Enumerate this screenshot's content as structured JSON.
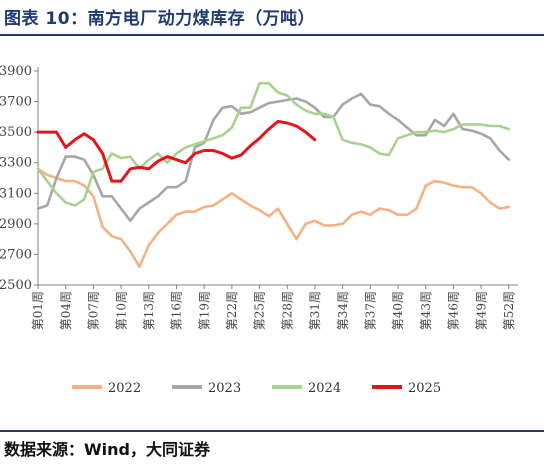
{
  "header": {
    "title": "图表 10：南方电厂动力煤库存（万吨）"
  },
  "footer": {
    "source": "数据来源：Wind，大同证券"
  },
  "chart_data": {
    "type": "line",
    "title": "南方电厂动力煤库存（万吨）",
    "ylim": [
      2500,
      3900
    ],
    "yticks": [
      2500,
      2700,
      2900,
      3100,
      3300,
      3500,
      3700,
      3900
    ],
    "ytick_labels": [
      "2500",
      "2700",
      "2900",
      "3100",
      "3300",
      "3500",
      "3700",
      "3900"
    ],
    "x_range": [
      1,
      53
    ],
    "xticks": [
      1,
      4,
      7,
      10,
      13,
      16,
      19,
      22,
      25,
      28,
      31,
      34,
      37,
      40,
      43,
      46,
      49,
      52
    ],
    "xtick_labels": [
      "第01周",
      "第04周",
      "第07周",
      "第10周",
      "第13周",
      "第16周",
      "第19周",
      "第22周",
      "第25周",
      "第28周",
      "第31周",
      "第34周",
      "第37周",
      "第40周",
      "第43周",
      "第46周",
      "第49周",
      "第52周"
    ],
    "legend": "bottom",
    "grid": false,
    "series": [
      {
        "name": "2022",
        "color": "#f4b183",
        "x": [
          1,
          2,
          3,
          4,
          5,
          6,
          7,
          8,
          9,
          10,
          11,
          12,
          13,
          14,
          15,
          16,
          17,
          18,
          19,
          20,
          21,
          22,
          23,
          24,
          25,
          26,
          27,
          28,
          29,
          30,
          31,
          32,
          33,
          34,
          35,
          36,
          37,
          38,
          39,
          40,
          41,
          42,
          43,
          44,
          45,
          46,
          47,
          48,
          49,
          50,
          51,
          52
        ],
        "values": [
          3260,
          3220,
          3200,
          3180,
          3180,
          3150,
          3080,
          2880,
          2820,
          2800,
          2720,
          2620,
          2760,
          2840,
          2900,
          2960,
          2980,
          2980,
          3010,
          3020,
          3060,
          3100,
          3060,
          3020,
          2990,
          2950,
          3000,
          2900,
          2800,
          2900,
          2920,
          2890,
          2890,
          2900,
          2960,
          2980,
          2960,
          3000,
          2990,
          2960,
          2960,
          3000,
          3150,
          3180,
          3170,
          3150,
          3140,
          3140,
          3100,
          3040,
          3000,
          3010
        ]
      },
      {
        "name": "2023",
        "color": "#a6a6a6",
        "x": [
          1,
          2,
          3,
          4,
          5,
          6,
          7,
          8,
          9,
          10,
          11,
          12,
          13,
          14,
          15,
          16,
          17,
          18,
          19,
          20,
          21,
          22,
          23,
          24,
          25,
          26,
          27,
          28,
          29,
          30,
          31,
          32,
          33,
          34,
          35,
          36,
          37,
          38,
          39,
          40,
          41,
          42,
          43,
          44,
          45,
          46,
          47,
          48,
          49,
          50,
          51,
          52
        ],
        "values": [
          3000,
          3020,
          3200,
          3340,
          3340,
          3320,
          3220,
          3080,
          3080,
          3000,
          2920,
          3000,
          3040,
          3080,
          3140,
          3140,
          3180,
          3400,
          3430,
          3580,
          3660,
          3670,
          3620,
          3630,
          3660,
          3690,
          3700,
          3710,
          3720,
          3700,
          3660,
          3600,
          3600,
          3680,
          3720,
          3750,
          3680,
          3670,
          3620,
          3580,
          3530,
          3480,
          3480,
          3580,
          3540,
          3620,
          3520,
          3510,
          3490,
          3460,
          3380,
          3320
        ]
      },
      {
        "name": "2024",
        "color": "#a9d18e",
        "x": [
          1,
          2,
          3,
          4,
          5,
          6,
          7,
          8,
          9,
          10,
          11,
          12,
          13,
          14,
          15,
          16,
          17,
          18,
          19,
          20,
          21,
          22,
          23,
          24,
          25,
          26,
          27,
          28,
          29,
          30,
          31,
          32,
          33,
          34,
          35,
          36,
          37,
          38,
          39,
          40,
          41,
          42,
          43,
          44,
          45,
          46,
          47,
          48,
          49,
          50,
          51,
          52
        ],
        "values": [
          3260,
          3180,
          3100,
          3040,
          3020,
          3060,
          3240,
          3260,
          3360,
          3330,
          3340,
          3260,
          3320,
          3360,
          3300,
          3360,
          3400,
          3420,
          3440,
          3460,
          3480,
          3530,
          3660,
          3660,
          3820,
          3820,
          3760,
          3740,
          3680,
          3640,
          3620,
          3620,
          3600,
          3450,
          3430,
          3420,
          3400,
          3360,
          3350,
          3460,
          3480,
          3500,
          3500,
          3510,
          3500,
          3520,
          3550,
          3550,
          3550,
          3540,
          3540,
          3520
        ]
      },
      {
        "name": "2025",
        "color": "#e3151a",
        "x": [
          1,
          2,
          3,
          4,
          5,
          6,
          7,
          8,
          9,
          10,
          11,
          12,
          13,
          14,
          15,
          16,
          17,
          18,
          19,
          20,
          21,
          22,
          23,
          24,
          25,
          26,
          27,
          28,
          29,
          30,
          31
        ],
        "values": [
          3500,
          3500,
          3500,
          3400,
          3450,
          3490,
          3450,
          3360,
          3180,
          3180,
          3260,
          3270,
          3260,
          3310,
          3340,
          3320,
          3300,
          3360,
          3380,
          3380,
          3360,
          3330,
          3350,
          3410,
          3460,
          3520,
          3570,
          3560,
          3540,
          3500,
          3450
        ]
      }
    ]
  }
}
